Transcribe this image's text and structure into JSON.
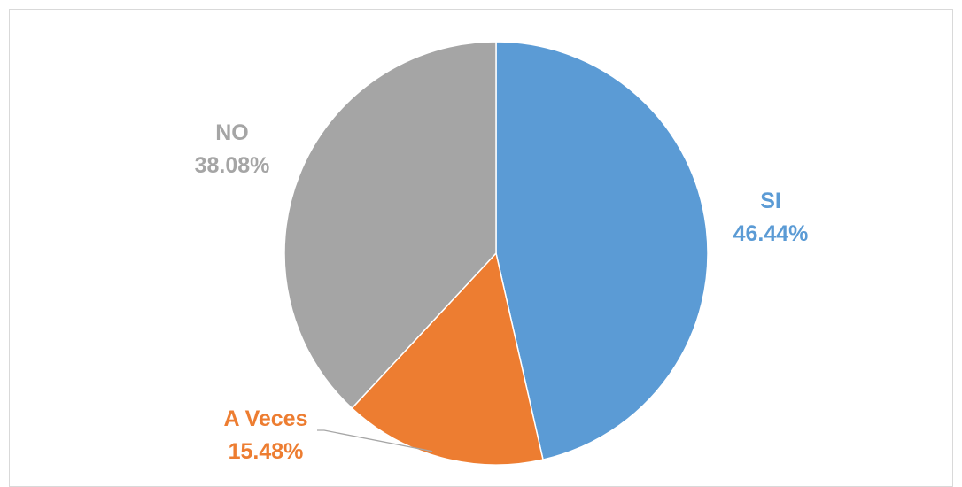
{
  "chart_data": {
    "type": "pie",
    "title": "",
    "slices": [
      {
        "label": "SI",
        "value": 46.44,
        "value_label": "46.44%",
        "color": "#5b9bd5"
      },
      {
        "label": "A Veces",
        "value": 15.48,
        "value_label": "15.48%",
        "color": "#ed7d31"
      },
      {
        "label": "NO",
        "value": 38.08,
        "value_label": "38.08%",
        "color": "#a5a5a5"
      }
    ],
    "start_angle": "12 o'clock",
    "direction": "clockwise",
    "legend": "none",
    "data_labels": "outside, category name and percentage"
  }
}
